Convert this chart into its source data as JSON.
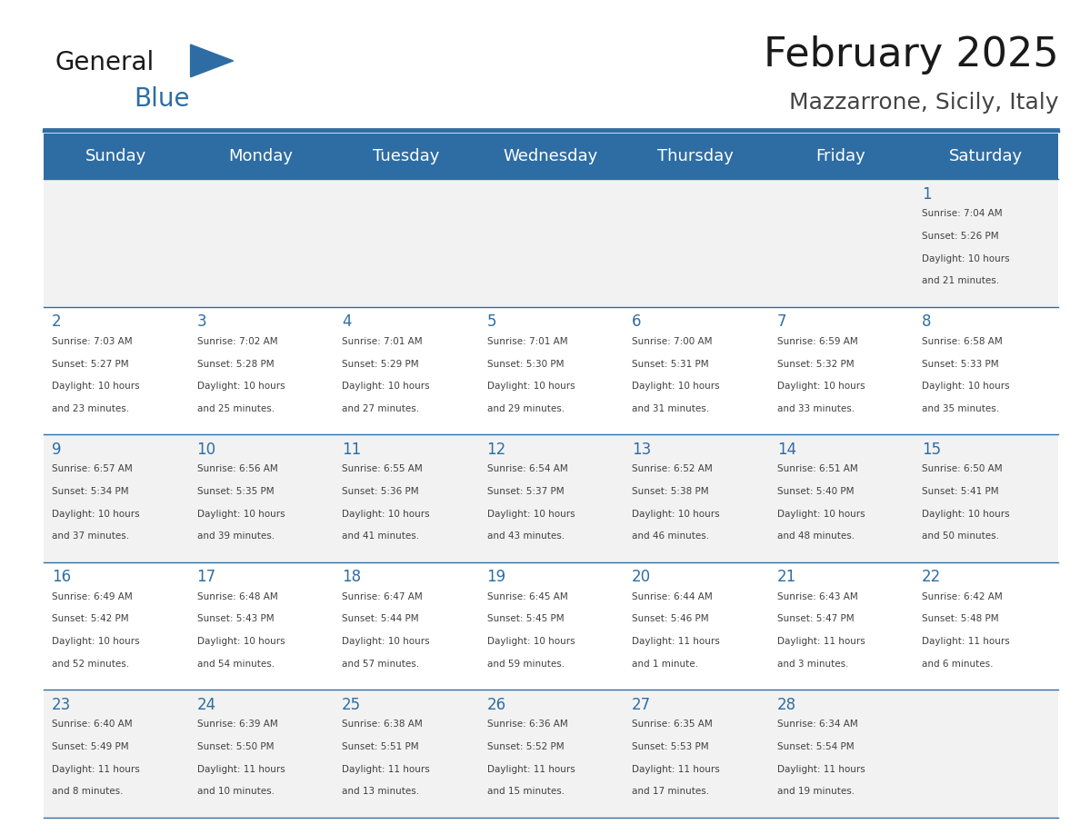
{
  "title": "February 2025",
  "subtitle": "Mazzarrone, Sicily, Italy",
  "header_color": "#2E6DA4",
  "header_text_color": "#FFFFFF",
  "day_names": [
    "Sunday",
    "Monday",
    "Tuesday",
    "Wednesday",
    "Thursday",
    "Friday",
    "Saturday"
  ],
  "background_color": "#FFFFFF",
  "cell_bg_even": "#F2F2F2",
  "cell_bg_odd": "#FFFFFF",
  "line_color": "#2E6DA4",
  "day_number_color": "#2E6DA4",
  "info_text_color": "#404040",
  "days": [
    {
      "day": 1,
      "col": 6,
      "row": 0,
      "sunrise": "7:04 AM",
      "sunset": "5:26 PM",
      "daylight_hours": 10,
      "daylight_minutes": 21
    },
    {
      "day": 2,
      "col": 0,
      "row": 1,
      "sunrise": "7:03 AM",
      "sunset": "5:27 PM",
      "daylight_hours": 10,
      "daylight_minutes": 23
    },
    {
      "day": 3,
      "col": 1,
      "row": 1,
      "sunrise": "7:02 AM",
      "sunset": "5:28 PM",
      "daylight_hours": 10,
      "daylight_minutes": 25
    },
    {
      "day": 4,
      "col": 2,
      "row": 1,
      "sunrise": "7:01 AM",
      "sunset": "5:29 PM",
      "daylight_hours": 10,
      "daylight_minutes": 27
    },
    {
      "day": 5,
      "col": 3,
      "row": 1,
      "sunrise": "7:01 AM",
      "sunset": "5:30 PM",
      "daylight_hours": 10,
      "daylight_minutes": 29
    },
    {
      "day": 6,
      "col": 4,
      "row": 1,
      "sunrise": "7:00 AM",
      "sunset": "5:31 PM",
      "daylight_hours": 10,
      "daylight_minutes": 31
    },
    {
      "day": 7,
      "col": 5,
      "row": 1,
      "sunrise": "6:59 AM",
      "sunset": "5:32 PM",
      "daylight_hours": 10,
      "daylight_minutes": 33
    },
    {
      "day": 8,
      "col": 6,
      "row": 1,
      "sunrise": "6:58 AM",
      "sunset": "5:33 PM",
      "daylight_hours": 10,
      "daylight_minutes": 35
    },
    {
      "day": 9,
      "col": 0,
      "row": 2,
      "sunrise": "6:57 AM",
      "sunset": "5:34 PM",
      "daylight_hours": 10,
      "daylight_minutes": 37
    },
    {
      "day": 10,
      "col": 1,
      "row": 2,
      "sunrise": "6:56 AM",
      "sunset": "5:35 PM",
      "daylight_hours": 10,
      "daylight_minutes": 39
    },
    {
      "day": 11,
      "col": 2,
      "row": 2,
      "sunrise": "6:55 AM",
      "sunset": "5:36 PM",
      "daylight_hours": 10,
      "daylight_minutes": 41
    },
    {
      "day": 12,
      "col": 3,
      "row": 2,
      "sunrise": "6:54 AM",
      "sunset": "5:37 PM",
      "daylight_hours": 10,
      "daylight_minutes": 43
    },
    {
      "day": 13,
      "col": 4,
      "row": 2,
      "sunrise": "6:52 AM",
      "sunset": "5:38 PM",
      "daylight_hours": 10,
      "daylight_minutes": 46
    },
    {
      "day": 14,
      "col": 5,
      "row": 2,
      "sunrise": "6:51 AM",
      "sunset": "5:40 PM",
      "daylight_hours": 10,
      "daylight_minutes": 48
    },
    {
      "day": 15,
      "col": 6,
      "row": 2,
      "sunrise": "6:50 AM",
      "sunset": "5:41 PM",
      "daylight_hours": 10,
      "daylight_minutes": 50
    },
    {
      "day": 16,
      "col": 0,
      "row": 3,
      "sunrise": "6:49 AM",
      "sunset": "5:42 PM",
      "daylight_hours": 10,
      "daylight_minutes": 52
    },
    {
      "day": 17,
      "col": 1,
      "row": 3,
      "sunrise": "6:48 AM",
      "sunset": "5:43 PM",
      "daylight_hours": 10,
      "daylight_minutes": 54
    },
    {
      "day": 18,
      "col": 2,
      "row": 3,
      "sunrise": "6:47 AM",
      "sunset": "5:44 PM",
      "daylight_hours": 10,
      "daylight_minutes": 57
    },
    {
      "day": 19,
      "col": 3,
      "row": 3,
      "sunrise": "6:45 AM",
      "sunset": "5:45 PM",
      "daylight_hours": 10,
      "daylight_minutes": 59
    },
    {
      "day": 20,
      "col": 4,
      "row": 3,
      "sunrise": "6:44 AM",
      "sunset": "5:46 PM",
      "daylight_hours": 11,
      "daylight_minutes": 1
    },
    {
      "day": 21,
      "col": 5,
      "row": 3,
      "sunrise": "6:43 AM",
      "sunset": "5:47 PM",
      "daylight_hours": 11,
      "daylight_minutes": 3
    },
    {
      "day": 22,
      "col": 6,
      "row": 3,
      "sunrise": "6:42 AM",
      "sunset": "5:48 PM",
      "daylight_hours": 11,
      "daylight_minutes": 6
    },
    {
      "day": 23,
      "col": 0,
      "row": 4,
      "sunrise": "6:40 AM",
      "sunset": "5:49 PM",
      "daylight_hours": 11,
      "daylight_minutes": 8
    },
    {
      "day": 24,
      "col": 1,
      "row": 4,
      "sunrise": "6:39 AM",
      "sunset": "5:50 PM",
      "daylight_hours": 11,
      "daylight_minutes": 10
    },
    {
      "day": 25,
      "col": 2,
      "row": 4,
      "sunrise": "6:38 AM",
      "sunset": "5:51 PM",
      "daylight_hours": 11,
      "daylight_minutes": 13
    },
    {
      "day": 26,
      "col": 3,
      "row": 4,
      "sunrise": "6:36 AM",
      "sunset": "5:52 PM",
      "daylight_hours": 11,
      "daylight_minutes": 15
    },
    {
      "day": 27,
      "col": 4,
      "row": 4,
      "sunrise": "6:35 AM",
      "sunset": "5:53 PM",
      "daylight_hours": 11,
      "daylight_minutes": 17
    },
    {
      "day": 28,
      "col": 5,
      "row": 4,
      "sunrise": "6:34 AM",
      "sunset": "5:54 PM",
      "daylight_hours": 11,
      "daylight_minutes": 19
    }
  ],
  "num_rows": 5,
  "num_cols": 7,
  "logo_text_general": "General",
  "logo_text_blue": "Blue",
  "logo_color_general": "#1a1a1a",
  "logo_color_blue": "#2E6DA4",
  "logo_triangle_color": "#2E6DA4"
}
